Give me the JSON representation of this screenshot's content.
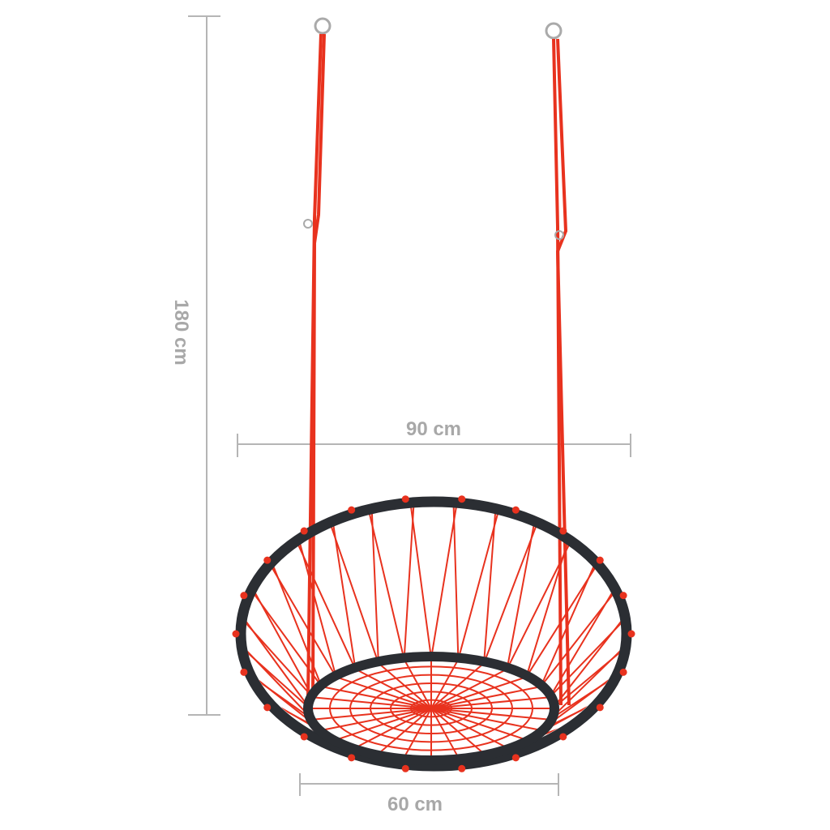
{
  "dimensions": {
    "height_label": "180 cm",
    "width_label": "90 cm",
    "seat_label": "60 cm"
  },
  "colors": {
    "dimension_line": "#b5b5b5",
    "rope": "#e8321e",
    "frame": "#2b2e33"
  }
}
